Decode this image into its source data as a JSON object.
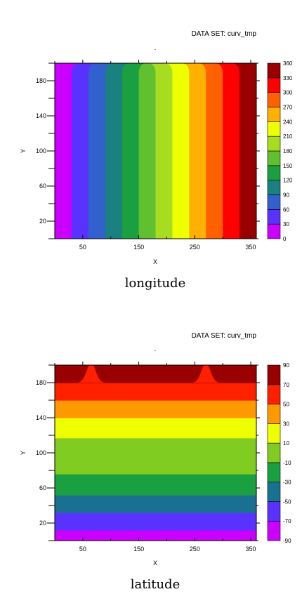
{
  "chart_data": [
    {
      "type": "heatmap",
      "dataset_label": "DATA SET: curv_tmp",
      "title": "longitude",
      "xlabel": "X",
      "ylabel": "Y",
      "xlim": [
        0,
        360
      ],
      "ylim": [
        0,
        200
      ],
      "xticks": [
        50,
        150,
        250,
        350
      ],
      "yticks": [
        20,
        60,
        100,
        140,
        180
      ],
      "levels": [
        "0",
        "30",
        "60",
        "90",
        "120",
        "150",
        "180",
        "210",
        "240",
        "270",
        "300",
        "330",
        "360"
      ],
      "colors": [
        "#cc00ff",
        "#5a32ff",
        "#3260cc",
        "#1a8080",
        "#1aa040",
        "#60c030",
        "#a8dc20",
        "#eeff00",
        "#ffb000",
        "#ff6000",
        "#ff0000",
        "#990000"
      ],
      "bands_x": [
        {
          "from": 0,
          "to": 30
        },
        {
          "from": 30,
          "to": 60
        },
        {
          "from": 60,
          "to": 90
        },
        {
          "from": 90,
          "to": 120
        },
        {
          "from": 120,
          "to": 150
        },
        {
          "from": 150,
          "to": 180
        },
        {
          "from": 180,
          "to": 210
        },
        {
          "from": 210,
          "to": 240
        },
        {
          "from": 240,
          "to": 270
        },
        {
          "from": 270,
          "to": 300
        },
        {
          "from": 300,
          "to": 330
        },
        {
          "from": 330,
          "to": 360
        }
      ]
    },
    {
      "type": "heatmap",
      "dataset_label": "DATA SET: curv_tmp",
      "title": "latitude",
      "xlabel": "X",
      "ylabel": "Y",
      "xlim": [
        0,
        360
      ],
      "ylim": [
        0,
        200
      ],
      "xticks": [
        50,
        150,
        250,
        350
      ],
      "yticks": [
        20,
        60,
        100,
        140,
        180
      ],
      "levels": [
        "-90",
        "-70",
        "-50",
        "-30",
        "-10",
        "10",
        "30",
        "50",
        "70",
        "90"
      ],
      "colors": [
        "#cc00ff",
        "#5a32ff",
        "#1a7090",
        "#1aa040",
        "#80cc20",
        "#eeff00",
        "#ff9900",
        "#ff2000",
        "#990000"
      ],
      "bands_y": [
        {
          "from": 0,
          "to": 12
        },
        {
          "from": 12,
          "to": 32
        },
        {
          "from": 32,
          "to": 52
        },
        {
          "from": 52,
          "to": 76
        },
        {
          "from": 76,
          "to": 117
        },
        {
          "from": 117,
          "to": 140
        },
        {
          "from": 140,
          "to": 160
        },
        {
          "from": 160,
          "to": 180
        },
        {
          "from": 180,
          "to": 200
        }
      ]
    }
  ]
}
